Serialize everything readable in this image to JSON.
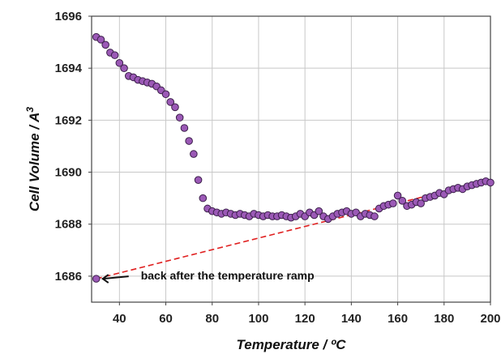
{
  "chart_data": {
    "type": "scatter",
    "title": "",
    "xlabel": "Temperature /  ºC",
    "ylabel_main": "Cell Volume / A",
    "ylabel_sup": "3",
    "xlim": [
      28,
      200
    ],
    "ylim": [
      1685,
      1696
    ],
    "xticks": [
      40,
      60,
      80,
      100,
      120,
      140,
      160,
      180,
      200
    ],
    "yticks": [
      1686,
      1688,
      1690,
      1692,
      1694,
      1696
    ],
    "grid": true,
    "colors": {
      "marker_fill": "#9b59b6",
      "marker_edge": "#3b1f4a",
      "fit_line": "#e02020",
      "grid": "#c8c8c8"
    },
    "series": [
      {
        "x": [
          30,
          32,
          34,
          36,
          38,
          40,
          42,
          44,
          46,
          48,
          50,
          52,
          54,
          56,
          58,
          60,
          62,
          64,
          66,
          68,
          70,
          72,
          74,
          76,
          78,
          80,
          82,
          84,
          86,
          88,
          90,
          92,
          94,
          96,
          98,
          100,
          102,
          104,
          106,
          108,
          110,
          112,
          114,
          116,
          118,
          120,
          122,
          124,
          126,
          128,
          130,
          132,
          134,
          136,
          138,
          140,
          142,
          144,
          146,
          148,
          150,
          152,
          154,
          156,
          158,
          160,
          162,
          164,
          166,
          168,
          170,
          172,
          174,
          176,
          178,
          180,
          182,
          184,
          186,
          188,
          190,
          192,
          194,
          196,
          198,
          200
        ],
        "y": [
          1695.2,
          1695.1,
          1694.9,
          1694.6,
          1694.5,
          1694.2,
          1694.0,
          1693.7,
          1693.65,
          1693.55,
          1693.5,
          1693.45,
          1693.4,
          1693.3,
          1693.15,
          1693.0,
          1692.7,
          1692.5,
          1692.1,
          1691.7,
          1691.2,
          1690.7,
          1689.7,
          1689.0,
          1688.6,
          1688.5,
          1688.45,
          1688.4,
          1688.45,
          1688.4,
          1688.35,
          1688.4,
          1688.35,
          1688.3,
          1688.4,
          1688.35,
          1688.3,
          1688.35,
          1688.3,
          1688.3,
          1688.35,
          1688.3,
          1688.25,
          1688.3,
          1688.4,
          1688.3,
          1688.45,
          1688.35,
          1688.5,
          1688.3,
          1688.2,
          1688.3,
          1688.4,
          1688.45,
          1688.5,
          1688.4,
          1688.45,
          1688.3,
          1688.4,
          1688.35,
          1688.3,
          1688.6,
          1688.7,
          1688.75,
          1688.8,
          1689.1,
          1688.9,
          1688.7,
          1688.75,
          1688.85,
          1688.8,
          1689.0,
          1689.05,
          1689.1,
          1689.2,
          1689.15,
          1689.3,
          1689.35,
          1689.4,
          1689.35,
          1689.45,
          1689.5,
          1689.55,
          1689.6,
          1689.65,
          1689.6
        ]
      }
    ],
    "fit_line": {
      "x": [
        30,
        200
      ],
      "y": [
        1685.9,
        1689.7
      ]
    },
    "extra_point": {
      "x": 30,
      "y": 1685.9
    },
    "annotation": {
      "text": "back after the temperature ramp",
      "x": 30,
      "y": 1685.9
    }
  }
}
